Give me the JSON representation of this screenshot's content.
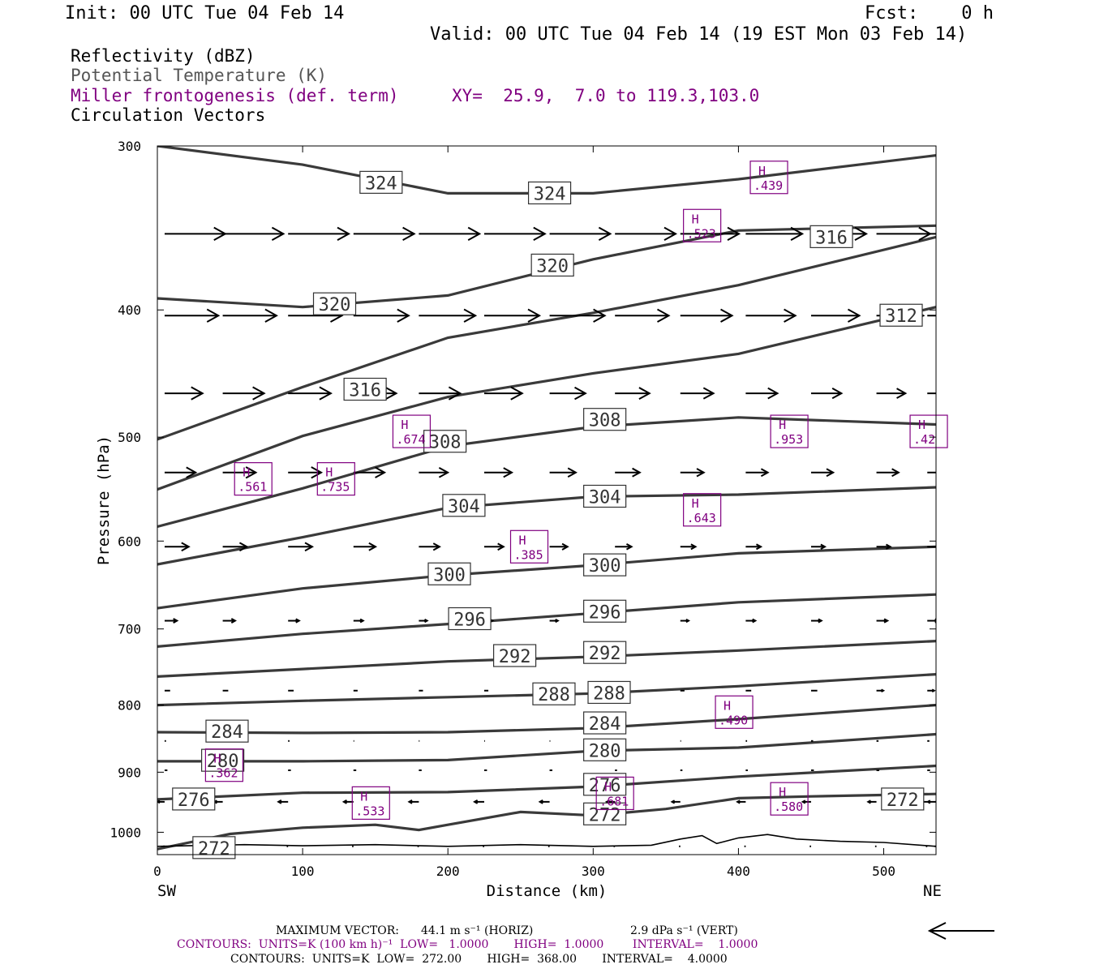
{
  "header": {
    "init": "Init: 00 UTC Tue 04 Feb 14",
    "fcst": "Fcst:    0 h",
    "valid": "Valid: 00 UTC Tue 04 Feb 14 (19 EST Mon 03 Feb 14)"
  },
  "legend": {
    "reflectivity": "Reflectivity (dBZ)",
    "theta": "Potential Temperature (K)",
    "frontogenesis": "Miller frontogenesis (def. term)",
    "xy": "XY=  25.9,  7.0 to 119.3,103.0",
    "vectors": "Circulation Vectors"
  },
  "footer": {
    "max_vector_label": "MAXIMUM VECTOR:",
    "max_vector_horiz": "44.1 m s⁻¹ (HORIZ)",
    "max_vector_vert": "2.9 dPa s⁻¹ (VERT)",
    "contours_fronto": "CONTOURS:  UNITS=K (100 km h)⁻¹  LOW=   1.0000       HIGH=  1.0000        INTERVAL=    1.0000",
    "contours_theta": "CONTOURS:  UNITS=K  LOW=  272.00       HIGH=  368.00       INTERVAL=    4.0000"
  },
  "colors": {
    "theta_line": "#3a3a3a",
    "frontogenesis": "#800080",
    "vector": "#000000"
  },
  "chart_data": {
    "type": "line",
    "title": "",
    "xlabel": "Distance (km)",
    "ylabel": "Pressure (hPa)",
    "xlim": [
      0,
      536
    ],
    "ylim": [
      1040,
      300
    ],
    "y_scale": "log",
    "x_ticks": [
      0,
      100,
      200,
      300,
      400,
      500
    ],
    "y_ticks": [
      300,
      400,
      500,
      600,
      700,
      800,
      900,
      1000
    ],
    "x_end_labels": {
      "left": "SW",
      "right": "NE"
    },
    "grid": false,
    "series": [
      {
        "name": "324",
        "x": [
          0,
          100,
          200,
          300,
          400,
          536
        ],
        "y": [
          300,
          310,
          326,
          326,
          318,
          305
        ]
      },
      {
        "name": "320",
        "x": [
          0,
          100,
          200,
          300,
          400,
          536
        ],
        "y": [
          392,
          398,
          390,
          366,
          348,
          345
        ]
      },
      {
        "name": "316",
        "x": [
          0,
          100,
          200,
          300,
          400,
          536
        ],
        "y": [
          502,
          458,
          420,
          402,
          383,
          352
        ]
      },
      {
        "name": "312",
        "x": [
          0,
          100,
          200,
          300,
          400,
          536
        ],
        "y": [
          548,
          499,
          466,
          447,
          432,
          398
        ]
      },
      {
        "name": "308",
        "x": [
          0,
          100,
          200,
          300,
          400,
          536
        ],
        "y": [
          585,
          547,
          508,
          491,
          483,
          489
        ]
      },
      {
        "name": "304",
        "x": [
          0,
          100,
          200,
          300,
          400,
          536
        ],
        "y": [
          625,
          596,
          566,
          555,
          553,
          546
        ]
      },
      {
        "name": "300",
        "x": [
          0,
          100,
          200,
          300,
          400,
          536
        ],
        "y": [
          675,
          652,
          637,
          626,
          613,
          606
        ]
      },
      {
        "name": "296",
        "x": [
          0,
          100,
          200,
          300,
          400,
          536
        ],
        "y": [
          722,
          706,
          694,
          681,
          668,
          659
        ]
      },
      {
        "name": "292",
        "x": [
          0,
          100,
          200,
          300,
          400,
          536
        ],
        "y": [
          761,
          751,
          741,
          735,
          727,
          715
        ]
      },
      {
        "name": "288",
        "x": [
          0,
          100,
          200,
          300,
          400,
          536
        ],
        "y": [
          800,
          794,
          789,
          784,
          774,
          758
        ]
      },
      {
        "name": "284",
        "x": [
          0,
          100,
          200,
          300,
          400,
          536
        ],
        "y": [
          839,
          840,
          839,
          833,
          820,
          800
        ]
      },
      {
        "name": "280",
        "x": [
          0,
          100,
          200,
          300,
          400,
          536
        ],
        "y": [
          883,
          883,
          881,
          867,
          862,
          842
        ]
      },
      {
        "name": "276",
        "x": [
          0,
          100,
          200,
          300,
          400,
          536
        ],
        "y": [
          944,
          933,
          932,
          923,
          907,
          890
        ]
      },
      {
        "name": "272",
        "x": [
          0,
          50,
          100,
          150,
          180,
          200,
          250,
          300,
          350,
          400,
          450,
          536
        ],
        "y": [
          1030,
          1003,
          992,
          987,
          996,
          987,
          965,
          971,
          960,
          942,
          939,
          935
        ]
      }
    ],
    "contour_labels": [
      {
        "text": "324",
        "x": 154,
        "y": 320
      },
      {
        "text": "324",
        "x": 270,
        "y": 326
      },
      {
        "text": "320",
        "x": 272,
        "y": 370
      },
      {
        "text": "320",
        "x": 122,
        "y": 396
      },
      {
        "text": "316",
        "x": 464,
        "y": 352
      },
      {
        "text": "312",
        "x": 512,
        "y": 404
      },
      {
        "text": "316",
        "x": 143,
        "y": 460
      },
      {
        "text": "308",
        "x": 198,
        "y": 504
      },
      {
        "text": "308",
        "x": 308,
        "y": 485
      },
      {
        "text": "304",
        "x": 211,
        "y": 564
      },
      {
        "text": "304",
        "x": 308,
        "y": 555
      },
      {
        "text": "300",
        "x": 201,
        "y": 636
      },
      {
        "text": "300",
        "x": 308,
        "y": 626
      },
      {
        "text": "296",
        "x": 215,
        "y": 688
      },
      {
        "text": "296",
        "x": 308,
        "y": 679
      },
      {
        "text": "292",
        "x": 246,
        "y": 734
      },
      {
        "text": "292",
        "x": 308,
        "y": 730
      },
      {
        "text": "288",
        "x": 273,
        "y": 785
      },
      {
        "text": "288",
        "x": 311,
        "y": 783
      },
      {
        "text": "284",
        "x": 48,
        "y": 838
      },
      {
        "text": "284",
        "x": 308,
        "y": 826
      },
      {
        "text": "280",
        "x": 308,
        "y": 866
      },
      {
        "text": "280",
        "x": 45,
        "y": 882
      },
      {
        "text": "276",
        "x": 308,
        "y": 920
      },
      {
        "text": "276",
        "x": 25,
        "y": 944
      },
      {
        "text": "272",
        "x": 308,
        "y": 969
      },
      {
        "text": "272",
        "x": 513,
        "y": 944
      },
      {
        "text": "272",
        "x": 39,
        "y": 1028
      }
    ],
    "frontogenesis_maxima": [
      {
        "label": "H",
        "value": ".439",
        "x": 421,
        "y": 317
      },
      {
        "label": "H",
        "value": ".523",
        "x": 375,
        "y": 345
      },
      {
        "label": "H",
        "value": ".674",
        "x": 175,
        "y": 495
      },
      {
        "label": "H",
        "value": ".561",
        "x": 66,
        "y": 538
      },
      {
        "label": "H",
        "value": ".735",
        "x": 123,
        "y": 538
      },
      {
        "label": "H",
        "value": ".953",
        "x": 435,
        "y": 495
      },
      {
        "label": "H",
        "value": ".42",
        "x": 531,
        "y": 495
      },
      {
        "label": "H",
        "value": ".643",
        "x": 375,
        "y": 568
      },
      {
        "label": "H",
        "value": ".385",
        "x": 256,
        "y": 606
      },
      {
        "label": "H",
        "value": ".490",
        "x": 397,
        "y": 810
      },
      {
        "label": "H",
        "value": ".362",
        "x": 46,
        "y": 889
      },
      {
        "label": "H",
        "value": ".681",
        "x": 315,
        "y": 934
      },
      {
        "label": "H",
        "value": ".533",
        "x": 147,
        "y": 950
      },
      {
        "label": "H",
        "value": ".580",
        "x": 435,
        "y": 943
      }
    ],
    "vector_rows": [
      {
        "p": 350,
        "u": [
          0.88,
          0.88,
          0.88,
          0.88,
          0.88,
          0.88,
          0.88,
          0.88,
          0.85,
          0.82,
          0.8,
          0.78,
          0.75,
          0.72
        ]
      },
      {
        "p": 404,
        "u": [
          0.78,
          0.78,
          0.78,
          0.8,
          0.82,
          0.8,
          0.8,
          0.78,
          0.75,
          0.72,
          0.7,
          0.68,
          0.66,
          0.65
        ]
      },
      {
        "p": 463,
        "u": [
          0.55,
          0.6,
          0.62,
          0.62,
          0.6,
          0.55,
          0.52,
          0.5,
          0.48,
          0.46,
          0.44,
          0.42,
          0.4,
          0.38
        ]
      },
      {
        "p": 532,
        "u": [
          0.45,
          0.48,
          0.48,
          0.45,
          0.42,
          0.4,
          0.38,
          0.36,
          0.34,
          0.32,
          0.32,
          0.32,
          0.3,
          0.28
        ]
      },
      {
        "p": 606,
        "u": [
          0.35,
          0.35,
          0.35,
          0.32,
          0.3,
          0.28,
          0.26,
          0.24,
          0.22,
          0.22,
          0.2,
          0.2,
          0.2,
          0.2
        ]
      },
      {
        "p": 690,
        "u": [
          0.18,
          0.18,
          0.16,
          0.14,
          0.12,
          0.12,
          0.12,
          0.12,
          0.12,
          0.14,
          0.15,
          0.16,
          0.16,
          0.16
        ]
      },
      {
        "p": 780,
        "u": [
          0.08,
          0.08,
          0.08,
          0.06,
          0.06,
          0.06,
          0.06,
          0.06,
          0.06,
          0.08,
          0.09,
          0.1,
          0.1,
          0.1
        ]
      },
      {
        "p": 852,
        "u": [
          0.02,
          0.03,
          0.02,
          0.01,
          0.01,
          0.01,
          0.01,
          0.01,
          0.01,
          0.02,
          0.03,
          0.03,
          0.03,
          0.03
        ]
      },
      {
        "p": 897,
        "u": [
          0.04,
          0.04,
          0.04,
          0.04,
          0.04,
          0.04,
          0.04,
          0.03,
          0.03,
          0.03,
          0.04,
          0.04,
          0.04,
          0.04
        ]
      },
      {
        "p": 948,
        "u": [
          -0.1,
          -0.12,
          -0.14,
          -0.14,
          -0.14,
          -0.14,
          -0.14,
          -0.12,
          -0.12,
          -0.12,
          -0.12,
          -0.12,
          -0.12,
          -0.12
        ]
      },
      {
        "p": 1025,
        "u": [
          -0.02,
          -0.02,
          -0.02,
          -0.02,
          -0.02,
          -0.02,
          -0.02,
          -0.02,
          -0.02,
          -0.02,
          -0.02,
          -0.02,
          -0.02,
          -0.02
        ]
      }
    ],
    "vector_x": [
      5,
      45,
      90,
      135,
      180,
      225,
      270,
      315,
      360,
      405,
      450,
      495,
      530,
      536
    ]
  }
}
